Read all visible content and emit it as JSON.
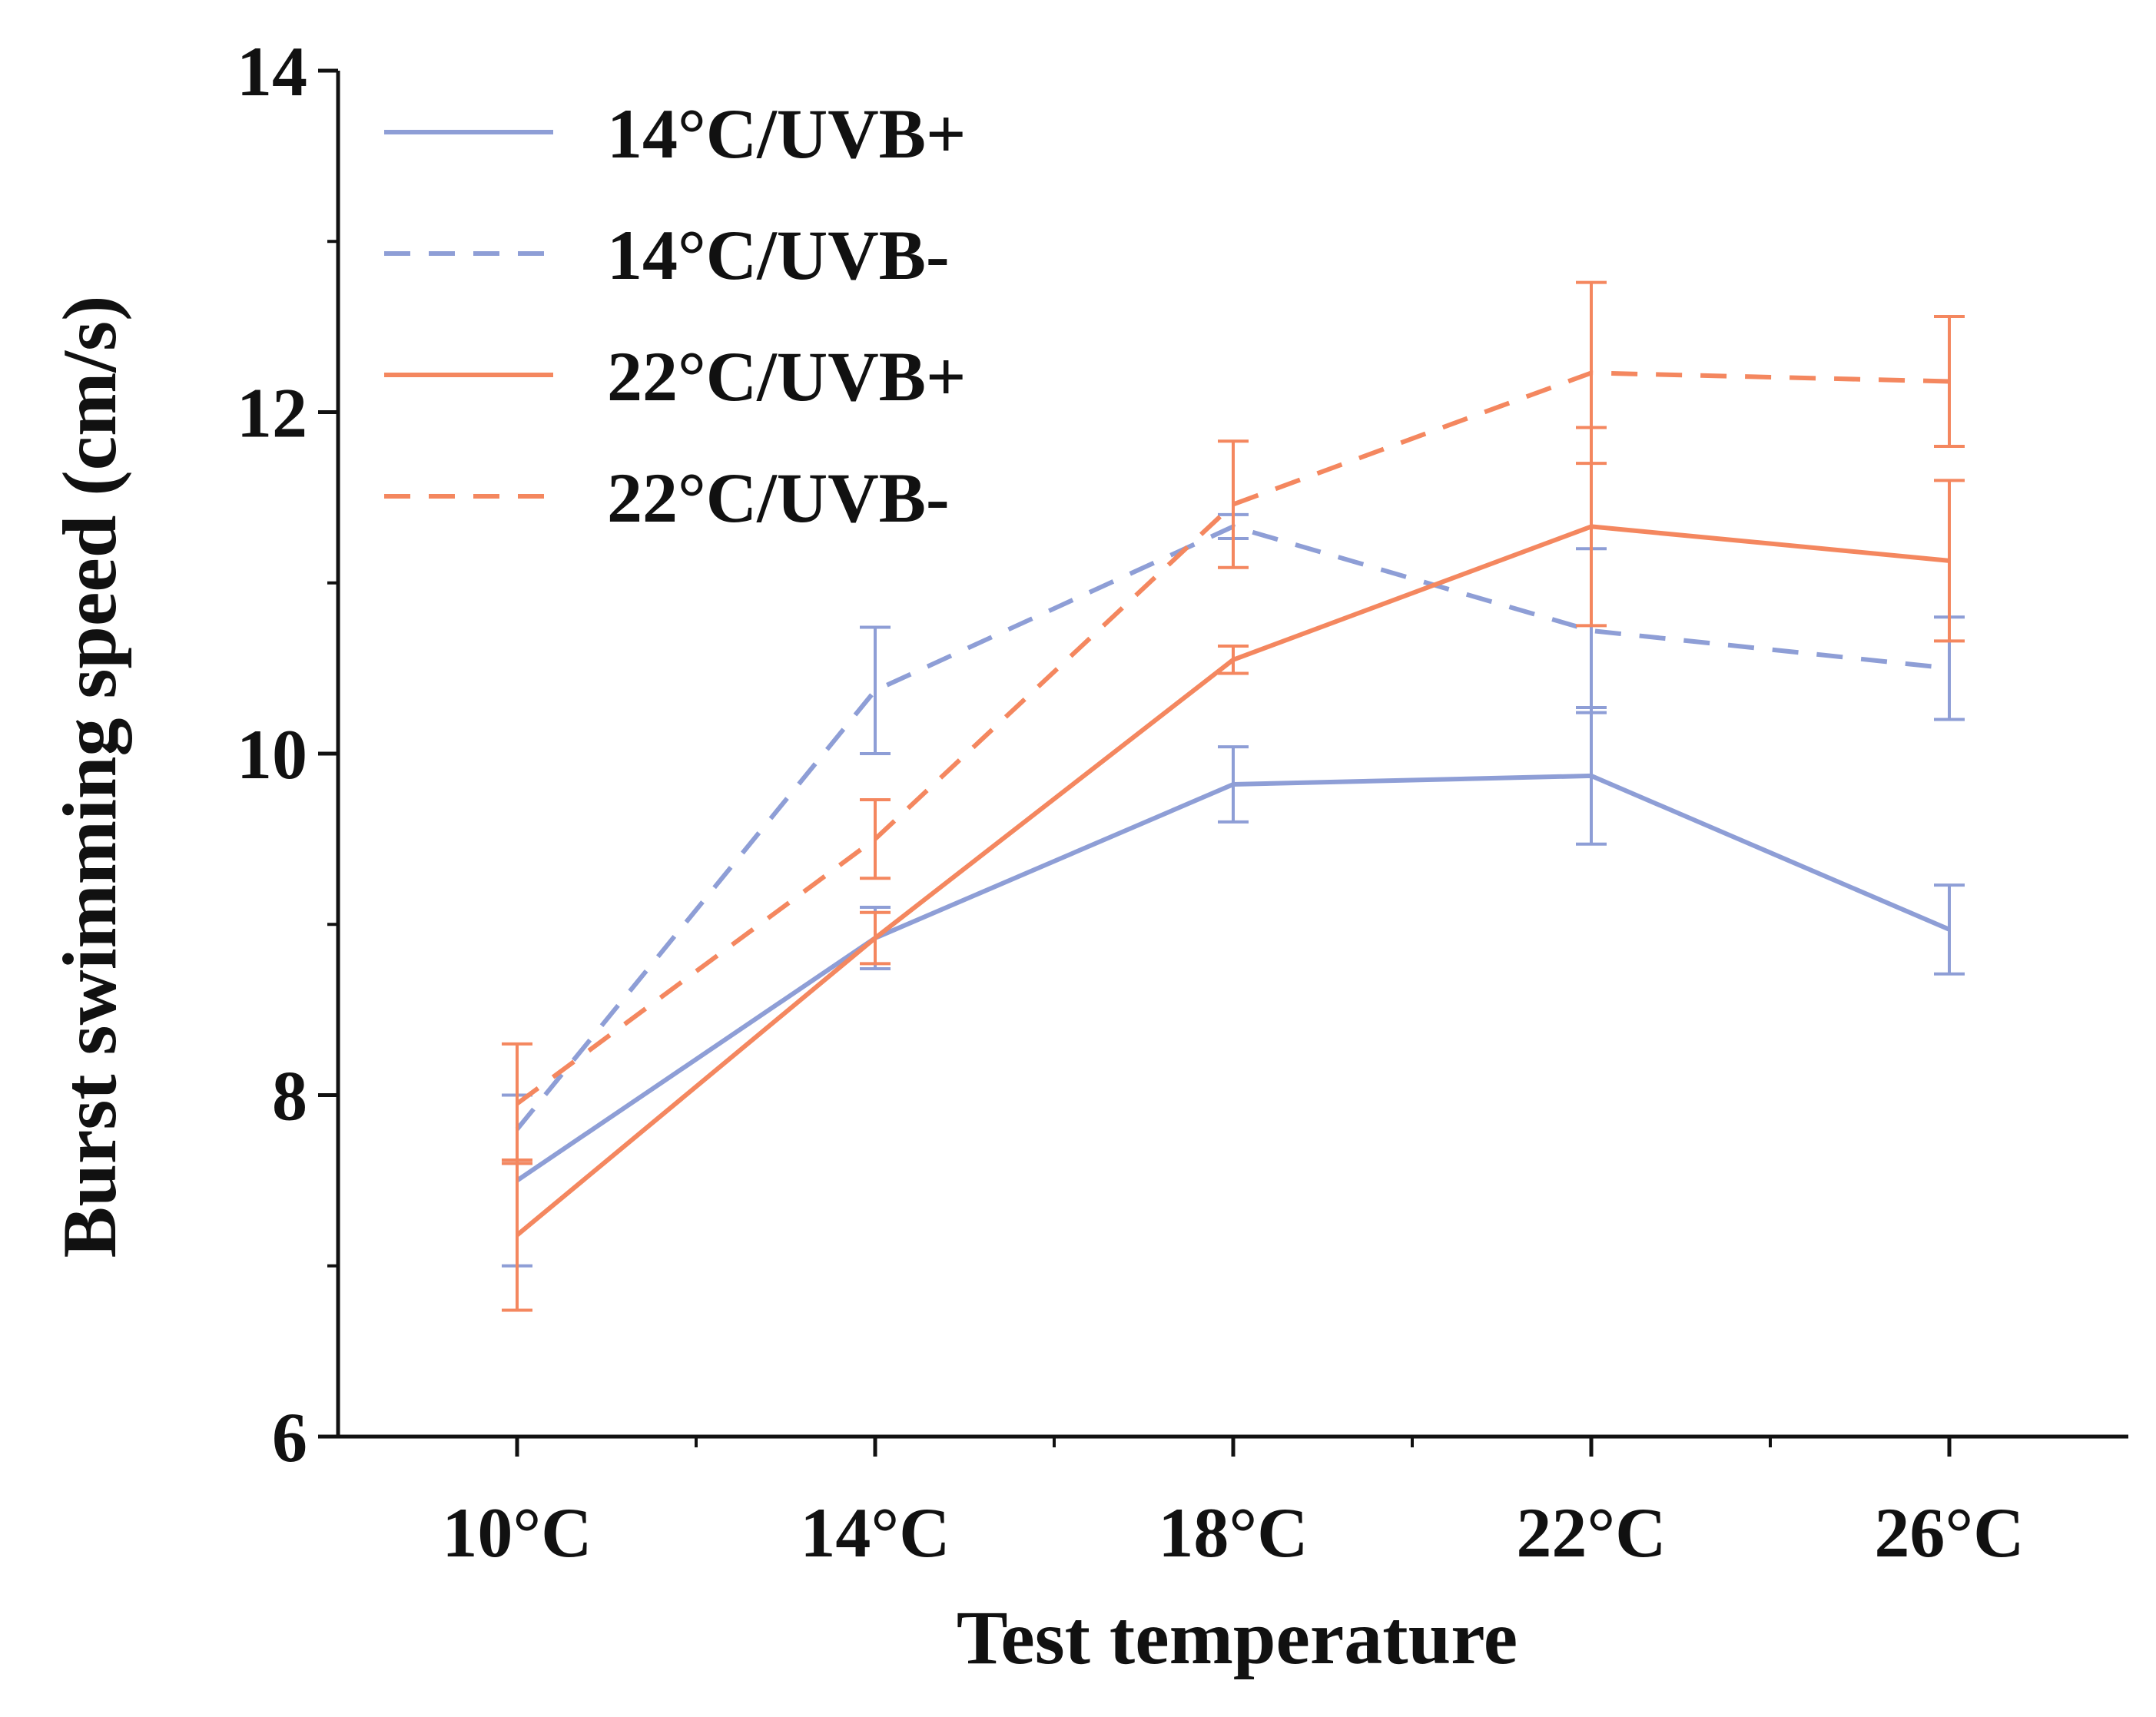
{
  "chart_data": {
    "type": "line",
    "title": "",
    "xlabel": "Test temperature",
    "ylabel": "Burst swimming speed (cm/s)",
    "categories": [
      "10°C",
      "14°C",
      "18°C",
      "22°C",
      "26°C"
    ],
    "ylim": [
      6,
      14
    ],
    "yticks": [
      "6",
      "8",
      "10",
      "12",
      "14"
    ],
    "legend_position": "top-left",
    "series": [
      {
        "name": "14°C/UVB+",
        "color": "#8e9ed6",
        "dash": "solid",
        "values": [
          7.5,
          8.92,
          9.82,
          9.87,
          8.97
        ],
        "errors": [
          0.5,
          0.18,
          0.22,
          0.4,
          0.26
        ]
      },
      {
        "name": "14°C/UVB-",
        "color": "#8e9ed6",
        "dash": "dashed",
        "values": [
          7.8,
          10.37,
          11.33,
          10.72,
          10.5
        ],
        "errors": [
          0.2,
          0.37,
          0.07,
          0.48,
          0.3
        ]
      },
      {
        "name": "22°C/UVB+",
        "color": "#f4875f",
        "dash": "solid",
        "values": [
          7.18,
          8.92,
          10.55,
          11.33,
          11.13
        ],
        "errors": [
          0.44,
          0.15,
          0.08,
          0.58,
          0.47
        ]
      },
      {
        "name": "22°C/UVB-",
        "color": "#f4875f",
        "dash": "dashed",
        "values": [
          7.95,
          9.5,
          11.46,
          12.23,
          12.18
        ],
        "errors": [
          0.35,
          0.23,
          0.37,
          0.53,
          0.38
        ]
      }
    ]
  }
}
